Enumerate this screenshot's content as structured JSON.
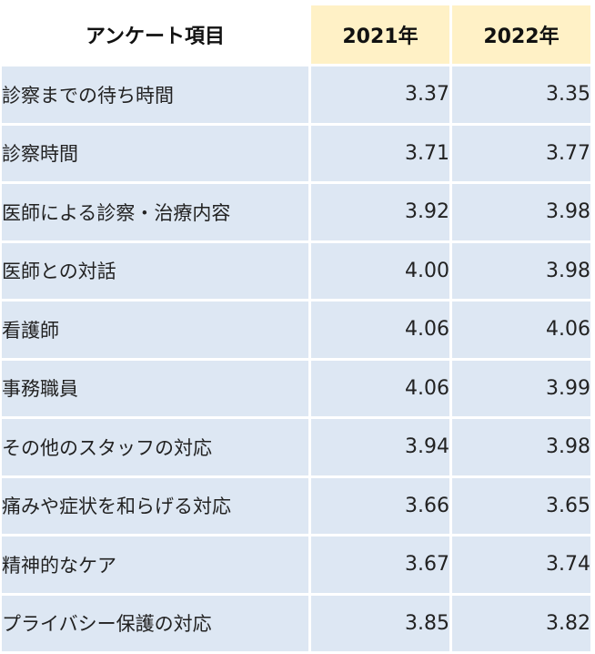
{
  "table": {
    "header": {
      "item": "アンケート項目",
      "year_2021": "2021年",
      "year_2022": "2022年"
    },
    "rows": [
      {
        "item": "診察までの待ち時間",
        "y2021": "3.37",
        "y2022": "3.35"
      },
      {
        "item": "診察時間",
        "y2021": "3.71",
        "y2022": "3.77"
      },
      {
        "item": "医師による診察・治療内容",
        "y2021": "3.92",
        "y2022": "3.98"
      },
      {
        "item": "医師との対話",
        "y2021": "4.00",
        "y2022": "3.98"
      },
      {
        "item": "看護師",
        "y2021": "4.06",
        "y2022": "4.06"
      },
      {
        "item": "事務職員",
        "y2021": "4.06",
        "y2022": "3.99"
      },
      {
        "item": "その他のスタッフの対応",
        "y2021": "3.94",
        "y2022": "3.98"
      },
      {
        "item": "痛みや症状を和らげる対応",
        "y2021": "3.66",
        "y2022": "3.65"
      },
      {
        "item": "精神的なケア",
        "y2021": "3.67",
        "y2022": "3.74"
      },
      {
        "item": "プライバシー保護の対応",
        "y2021": "3.85",
        "y2022": "3.82"
      }
    ]
  },
  "colors": {
    "header_year_bg": "#fff1c6",
    "row_bg": "#dde7f3",
    "text": "#222222"
  }
}
